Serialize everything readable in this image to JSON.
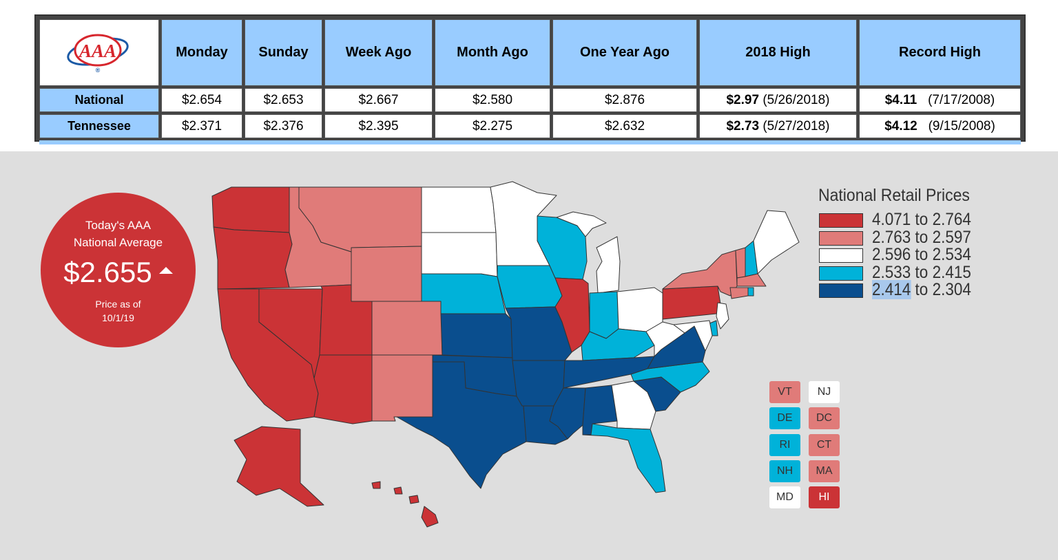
{
  "table": {
    "logo_text": "AAA",
    "headers": [
      "Monday",
      "Sunday",
      "Week Ago",
      "Month Ago",
      "One Year Ago",
      "2018 High",
      "Record High"
    ],
    "rows": [
      {
        "label": "National",
        "monday": "$2.654",
        "sunday": "$2.653",
        "week_ago": "$2.667",
        "month_ago": "$2.580",
        "year_ago": "$2.876",
        "high_2018_value": "$2.97",
        "high_2018_date": "(5/26/2018)",
        "record_value": "$4.11",
        "record_date": "(7/17/2008)"
      },
      {
        "label": "Tennessee",
        "monday": "$2.371",
        "sunday": "$2.376",
        "week_ago": "$2.395",
        "month_ago": "$2.275",
        "year_ago": "$2.632",
        "high_2018_value": "$2.73",
        "high_2018_date": "(5/27/2018)",
        "record_value": "$4.12",
        "record_date": "(9/15/2008)"
      }
    ]
  },
  "national_average": {
    "title_line1": "Today's AAA",
    "title_line2": "National Average",
    "value": "$2.655",
    "trend": "up",
    "asof_line1": "Price as of",
    "asof_line2": "10/1/19"
  },
  "legend": {
    "title": "National Retail Prices",
    "bins": [
      {
        "label": "4.071 to 2.764",
        "color": "#cb3336"
      },
      {
        "label": "2.763 to 2.597",
        "color": "#e07b79"
      },
      {
        "label": "2.596 to 2.534",
        "color": "#ffffff"
      },
      {
        "label": "2.533 to 2.415",
        "color": "#00b2d9"
      },
      {
        "label": "2.414 to 2.304",
        "color": "#0a4e8e",
        "label_a": "2.414",
        "label_b": " to 2.304"
      }
    ]
  },
  "small_states": [
    {
      "abbr": "VT",
      "color": "#e07b79"
    },
    {
      "abbr": "NJ",
      "color": "#ffffff"
    },
    {
      "abbr": "DE",
      "color": "#00b2d9"
    },
    {
      "abbr": "DC",
      "color": "#e07b79"
    },
    {
      "abbr": "RI",
      "color": "#00b2d9"
    },
    {
      "abbr": "CT",
      "color": "#e07b79"
    },
    {
      "abbr": "NH",
      "color": "#00b2d9"
    },
    {
      "abbr": "MA",
      "color": "#e07b79"
    },
    {
      "abbr": "MD",
      "color": "#ffffff"
    },
    {
      "abbr": "HI",
      "color": "#cb3336"
    }
  ],
  "states": [
    {
      "abbr": "WA",
      "color": "#cb3336"
    },
    {
      "abbr": "OR",
      "color": "#cb3336"
    },
    {
      "abbr": "CA",
      "color": "#cb3336"
    },
    {
      "abbr": "NV",
      "color": "#cb3336"
    },
    {
      "abbr": "UT",
      "color": "#cb3336"
    },
    {
      "abbr": "AZ",
      "color": "#cb3336"
    },
    {
      "abbr": "AK",
      "color": "#cb3336"
    },
    {
      "abbr": "IL",
      "color": "#cb3336"
    },
    {
      "abbr": "PA",
      "color": "#cb3336"
    },
    {
      "abbr": "ID",
      "color": "#e07b79"
    },
    {
      "abbr": "MT",
      "color": "#e07b79"
    },
    {
      "abbr": "WY",
      "color": "#e07b79"
    },
    {
      "abbr": "CO",
      "color": "#e07b79"
    },
    {
      "abbr": "NM",
      "color": "#e07b79"
    },
    {
      "abbr": "NY",
      "color": "#e07b79"
    },
    {
      "abbr": "ND",
      "color": "#ffffff"
    },
    {
      "abbr": "SD",
      "color": "#ffffff"
    },
    {
      "abbr": "MN",
      "color": "#ffffff"
    },
    {
      "abbr": "MI",
      "color": "#ffffff"
    },
    {
      "abbr": "OH",
      "color": "#ffffff"
    },
    {
      "abbr": "WV",
      "color": "#ffffff"
    },
    {
      "abbr": "GA",
      "color": "#ffffff"
    },
    {
      "abbr": "ME",
      "color": "#ffffff"
    },
    {
      "abbr": "NE",
      "color": "#00b2d9"
    },
    {
      "abbr": "IA",
      "color": "#00b2d9"
    },
    {
      "abbr": "WI",
      "color": "#00b2d9"
    },
    {
      "abbr": "IN",
      "color": "#00b2d9"
    },
    {
      "abbr": "KY",
      "color": "#00b2d9"
    },
    {
      "abbr": "NC",
      "color": "#00b2d9"
    },
    {
      "abbr": "FL",
      "color": "#00b2d9"
    },
    {
      "abbr": "KS",
      "color": "#0a4e8e"
    },
    {
      "abbr": "OK",
      "color": "#0a4e8e"
    },
    {
      "abbr": "TX",
      "color": "#0a4e8e"
    },
    {
      "abbr": "MO",
      "color": "#0a4e8e"
    },
    {
      "abbr": "AR",
      "color": "#0a4e8e"
    },
    {
      "abbr": "LA",
      "color": "#0a4e8e"
    },
    {
      "abbr": "MS",
      "color": "#0a4e8e"
    },
    {
      "abbr": "AL",
      "color": "#0a4e8e"
    },
    {
      "abbr": "TN",
      "color": "#0a4e8e"
    },
    {
      "abbr": "SC",
      "color": "#0a4e8e"
    },
    {
      "abbr": "VA",
      "color": "#0a4e8e"
    }
  ]
}
